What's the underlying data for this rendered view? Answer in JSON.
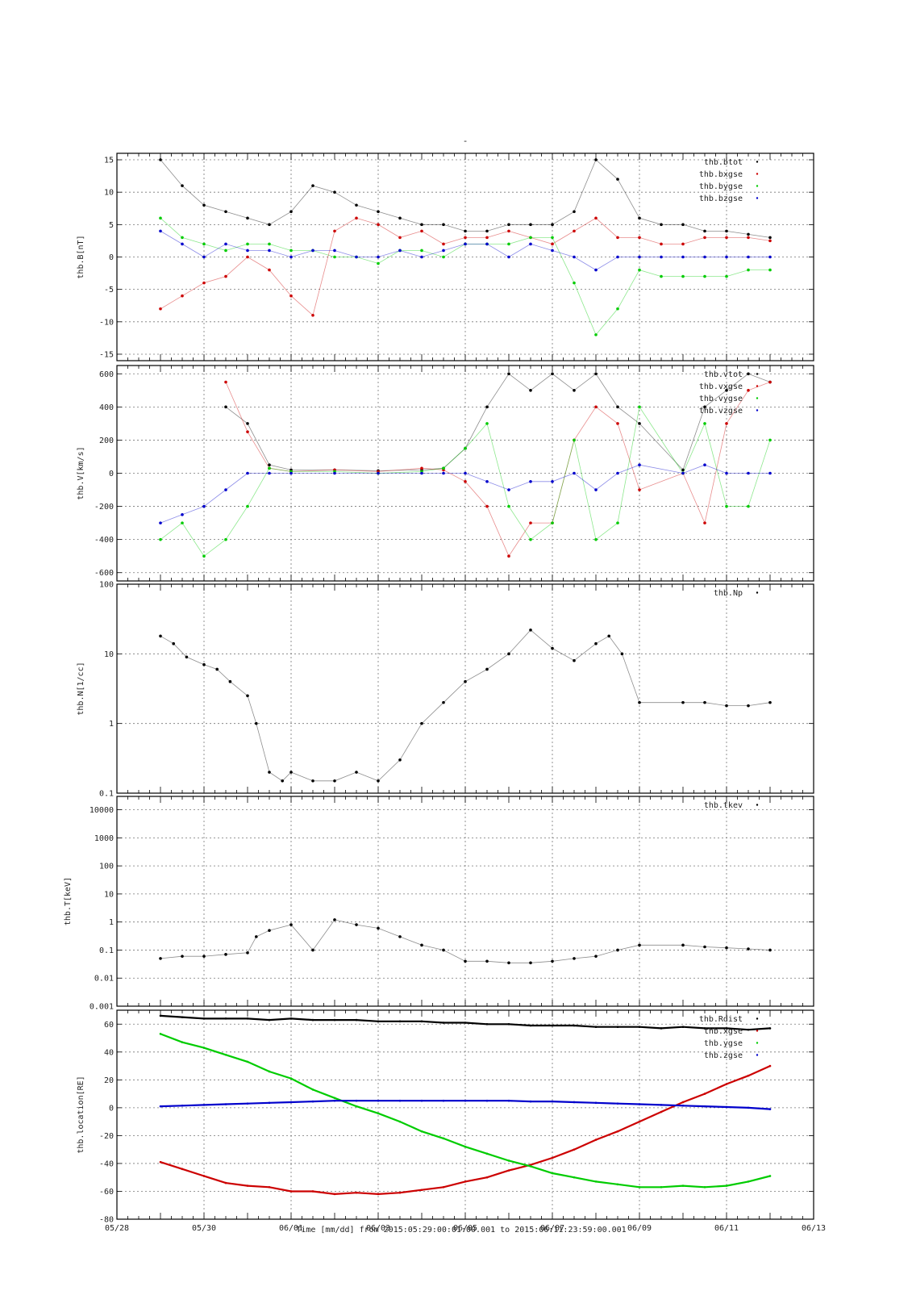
{
  "page": {
    "title": "-",
    "footer": "Time [mm/dd]  from 2015:05:29:00:01:00.001  to  2015:06:11:23:59:00.001"
  },
  "x_axis": {
    "range": [
      0,
      16
    ],
    "ticks": [
      {
        "v": 0,
        "label": "05/28"
      },
      {
        "v": 2,
        "label": "05/30"
      },
      {
        "v": 4,
        "label": "06/01"
      },
      {
        "v": 6,
        "label": "06/03"
      },
      {
        "v": 8,
        "label": "06/05"
      },
      {
        "v": 10,
        "label": "06/07"
      },
      {
        "v": 12,
        "label": "06/09"
      },
      {
        "v": 14,
        "label": "06/11"
      },
      {
        "v": 16,
        "label": "06/13"
      }
    ]
  },
  "colors": {
    "black": "#000000",
    "red": "#cc0000",
    "green": "#00cc00",
    "blue": "#0000cc"
  },
  "chart_data": [
    {
      "type": "scatter",
      "ylabel": "thb.B[nT]",
      "ylim": [
        -16,
        16
      ],
      "log": false,
      "yticks": [
        -15,
        -10,
        -5,
        0,
        5,
        10,
        15
      ],
      "ytick_labels": [
        "-15",
        "-10",
        "-5",
        "0",
        "5",
        "10",
        "15"
      ],
      "grid": true,
      "legend": "top-right",
      "series": [
        {
          "name": "thb.btot",
          "color": "#000000",
          "x": [
            1.0,
            1.5,
            2.0,
            2.5,
            3.0,
            3.5,
            4.0,
            4.5,
            5.0,
            5.5,
            6.0,
            6.5,
            7.0,
            7.5,
            8.0,
            8.5,
            9.0,
            9.5,
            10.0,
            10.5,
            11.0,
            11.5,
            12.0,
            12.5,
            13.0,
            13.5,
            14.0,
            14.5,
            15.0
          ],
          "y": [
            15,
            11,
            8,
            7,
            6,
            5,
            7,
            11,
            10,
            8,
            7,
            6,
            5,
            5,
            4,
            4,
            5,
            5,
            5,
            7,
            15,
            12,
            6,
            5,
            5,
            4,
            4,
            3.5,
            3
          ]
        },
        {
          "name": "thb.bxgse",
          "color": "#cc0000",
          "x": [
            1.0,
            1.5,
            2.0,
            2.5,
            3.0,
            3.5,
            4.0,
            4.5,
            5.0,
            5.5,
            6.0,
            6.5,
            7.0,
            7.5,
            8.0,
            8.5,
            9.0,
            9.5,
            10.0,
            10.5,
            11.0,
            11.5,
            12.0,
            12.5,
            13.0,
            13.5,
            14.0,
            14.5,
            15.0
          ],
          "y": [
            -8,
            -6,
            -4,
            -3,
            0,
            -2,
            -6,
            -9,
            4,
            6,
            5,
            3,
            4,
            2,
            3,
            3,
            4,
            3,
            2,
            4,
            6,
            3,
            3,
            2,
            2,
            3,
            3,
            3,
            2.5
          ]
        },
        {
          "name": "thb.bygse",
          "color": "#00cc00",
          "x": [
            1.0,
            1.5,
            2.0,
            2.5,
            3.0,
            3.5,
            4.0,
            4.5,
            5.0,
            5.5,
            6.0,
            6.5,
            7.0,
            7.5,
            8.0,
            8.5,
            9.0,
            9.5,
            10.0,
            10.5,
            11.0,
            11.5,
            12.0,
            12.5,
            13.0,
            13.5,
            14.0,
            14.5,
            15.0
          ],
          "y": [
            6,
            3,
            2,
            1,
            2,
            2,
            1,
            1,
            0,
            0,
            -1,
            1,
            1,
            0,
            2,
            2,
            2,
            3,
            3,
            -4,
            -12,
            -8,
            -2,
            -3,
            -3,
            -3,
            -3,
            -2,
            -2
          ]
        },
        {
          "name": "thb.bzgse",
          "color": "#0000cc",
          "x": [
            1.0,
            1.5,
            2.0,
            2.5,
            3.0,
            3.5,
            4.0,
            4.5,
            5.0,
            5.5,
            6.0,
            6.5,
            7.0,
            7.5,
            8.0,
            8.5,
            9.0,
            9.5,
            10.0,
            10.5,
            11.0,
            11.5,
            12.0,
            12.5,
            13.0,
            13.5,
            14.0,
            14.5,
            15.0
          ],
          "y": [
            4,
            2,
            0,
            2,
            1,
            1,
            0,
            1,
            1,
            0,
            0,
            1,
            0,
            1,
            2,
            2,
            0,
            2,
            1,
            0,
            -2,
            0,
            0,
            0,
            0,
            0,
            0,
            0,
            0
          ]
        }
      ]
    },
    {
      "type": "scatter",
      "ylabel": "thb.V[km/s]",
      "ylim": [
        -650,
        650
      ],
      "log": false,
      "yticks": [
        -600,
        -400,
        -200,
        0,
        200,
        400,
        600
      ],
      "ytick_labels": [
        "-600",
        "-400",
        "-200",
        "0",
        "200",
        "400",
        "600"
      ],
      "grid": true,
      "legend": "top-right",
      "series": [
        {
          "name": "thb.vtot",
          "color": "#000000",
          "x": [
            2.5,
            3.0,
            3.5,
            4.0,
            5.0,
            6.0,
            7.0,
            7.5,
            8.0,
            8.5,
            9.0,
            9.5,
            10.0,
            10.5,
            11.0,
            11.5,
            12.0,
            13.0,
            13.5,
            14.0,
            14.5,
            15.0
          ],
          "y": [
            400,
            300,
            50,
            20,
            20,
            15,
            20,
            30,
            150,
            400,
            600,
            500,
            600,
            500,
            600,
            400,
            300,
            20,
            400,
            500,
            600,
            550
          ]
        },
        {
          "name": "thb.vxgse",
          "color": "#cc0000",
          "x": [
            2.5,
            3.0,
            3.5,
            4.0,
            5.0,
            6.0,
            7.0,
            7.5,
            8.0,
            8.5,
            9.0,
            9.5,
            10.0,
            10.5,
            11.0,
            11.5,
            12.0,
            13.0,
            13.5,
            14.0,
            14.5,
            15.0
          ],
          "y": [
            550,
            250,
            30,
            10,
            20,
            10,
            30,
            20,
            -50,
            -200,
            -500,
            -300,
            -300,
            200,
            400,
            300,
            -100,
            0,
            -300,
            300,
            500,
            550
          ]
        },
        {
          "name": "thb.vygse",
          "color": "#00cc00",
          "x": [
            1.0,
            1.5,
            2.0,
            2.5,
            3.0,
            3.5,
            4.0,
            5.0,
            6.0,
            7.0,
            7.5,
            8.0,
            8.5,
            9.0,
            9.5,
            10.0,
            10.5,
            11.0,
            11.5,
            12.0,
            13.0,
            13.5,
            14.0,
            14.5,
            15.0
          ],
          "y": [
            -400,
            -300,
            -500,
            -400,
            -200,
            30,
            10,
            10,
            0,
            10,
            30,
            150,
            300,
            -200,
            -400,
            -300,
            200,
            -400,
            -300,
            400,
            0,
            300,
            -200,
            -200,
            200
          ]
        },
        {
          "name": "thb.vzgse",
          "color": "#0000cc",
          "x": [
            1.0,
            1.5,
            2.0,
            2.5,
            3.0,
            3.5,
            4.0,
            5.0,
            6.0,
            7.0,
            7.5,
            8.0,
            8.5,
            9.0,
            9.5,
            10.0,
            10.5,
            11.0,
            11.5,
            12.0,
            13.0,
            13.5,
            14.0,
            14.5,
            15.0
          ],
          "y": [
            -300,
            -250,
            -200,
            -100,
            0,
            0,
            0,
            0,
            0,
            0,
            0,
            0,
            -50,
            -100,
            -50,
            -50,
            0,
            -100,
            0,
            50,
            0,
            50,
            0,
            0,
            0
          ]
        }
      ]
    },
    {
      "type": "scatter",
      "ylabel": "thb.N[1/cc]",
      "ylim": [
        0.1,
        100
      ],
      "log": true,
      "yticks": [
        0.1,
        1,
        10,
        100
      ],
      "ytick_labels": [
        "0.1",
        "1",
        "10",
        "100"
      ],
      "grid": true,
      "legend": "top-right",
      "series": [
        {
          "name": "thb.Np",
          "color": "#000000",
          "x": [
            1.0,
            1.3,
            1.6,
            2.0,
            2.3,
            2.6,
            3.0,
            3.2,
            3.5,
            3.8,
            4.0,
            4.5,
            5.0,
            5.5,
            6.0,
            6.5,
            7.0,
            7.5,
            8.0,
            8.5,
            9.0,
            9.5,
            10.0,
            10.5,
            11.0,
            11.3,
            11.6,
            12.0,
            13.0,
            13.5,
            14.0,
            14.5,
            15.0
          ],
          "y": [
            18,
            14,
            9,
            7,
            6,
            4,
            2.5,
            1,
            0.2,
            0.15,
            0.2,
            0.15,
            0.15,
            0.2,
            0.15,
            0.3,
            1,
            2,
            4,
            6,
            10,
            22,
            12,
            8,
            14,
            18,
            10,
            2,
            2,
            2,
            1.8,
            1.8,
            2
          ]
        }
      ]
    },
    {
      "type": "scatter",
      "ylabel": "thb.T[keV]",
      "ylim": [
        0.001,
        30000
      ],
      "log": true,
      "yticks": [
        0.001,
        0.01,
        0.1,
        1,
        10,
        100,
        1000,
        10000
      ],
      "ytick_labels": [
        "0.001",
        "0.01",
        "0.1",
        "1",
        "10",
        "100",
        "1000",
        "10000"
      ],
      "grid": true,
      "legend": "top-right",
      "series": [
        {
          "name": "thb.tkev",
          "color": "#000000",
          "x": [
            1.0,
            1.5,
            2.0,
            2.5,
            3.0,
            3.2,
            3.5,
            4.0,
            4.5,
            5.0,
            5.5,
            6.0,
            6.5,
            7.0,
            7.5,
            8.0,
            8.5,
            9.0,
            9.5,
            10.0,
            10.5,
            11.0,
            11.5,
            12.0,
            13.0,
            13.5,
            14.0,
            14.5,
            15.0
          ],
          "y": [
            0.05,
            0.06,
            0.06,
            0.07,
            0.08,
            0.3,
            0.5,
            0.8,
            0.1,
            1.2,
            0.8,
            0.6,
            0.3,
            0.15,
            0.1,
            0.04,
            0.04,
            0.035,
            0.035,
            0.04,
            0.05,
            0.06,
            0.1,
            0.15,
            0.15,
            0.13,
            0.12,
            0.11,
            0.1
          ]
        }
      ]
    },
    {
      "type": "line",
      "ylabel": "thb.location[RE]",
      "ylim": [
        -80,
        70
      ],
      "log": false,
      "yticks": [
        -80,
        -60,
        -40,
        -20,
        0,
        20,
        40,
        60
      ],
      "ytick_labels": [
        "-80",
        "-60",
        "-40",
        "-20",
        "0",
        "20",
        "40",
        "60"
      ],
      "grid": true,
      "legend": "top-right",
      "series": [
        {
          "name": "thb.Rdist",
          "color": "#000000",
          "x": [
            1.0,
            1.5,
            2.0,
            2.5,
            3.0,
            3.5,
            4.0,
            4.5,
            5.0,
            5.5,
            6.0,
            6.5,
            7.0,
            7.5,
            8.0,
            8.5,
            9.0,
            9.5,
            10.0,
            10.5,
            11.0,
            11.5,
            12.0,
            12.5,
            13.0,
            13.5,
            14.0,
            14.5,
            15.0
          ],
          "y": [
            66,
            65,
            64,
            64,
            64,
            63,
            64,
            63,
            63,
            63,
            62,
            62,
            62,
            61,
            61,
            60,
            60,
            59,
            59,
            59,
            58,
            58,
            58,
            57,
            58,
            57,
            57,
            56,
            57
          ]
        },
        {
          "name": "thb.xgse",
          "color": "#cc0000",
          "x": [
            1.0,
            1.5,
            2.0,
            2.5,
            3.0,
            3.5,
            4.0,
            4.5,
            5.0,
            5.5,
            6.0,
            6.5,
            7.0,
            7.5,
            8.0,
            8.5,
            9.0,
            9.5,
            10.0,
            10.5,
            11.0,
            11.5,
            12.0,
            12.5,
            13.0,
            13.5,
            14.0,
            14.5,
            15.0
          ],
          "y": [
            -39,
            -44,
            -49,
            -54,
            -56,
            -57,
            -60,
            -60,
            -62,
            -61,
            -62,
            -61,
            -59,
            -57,
            -53,
            -50,
            -45,
            -41,
            -36,
            -30,
            -23,
            -17,
            -10,
            -3,
            4,
            10,
            17,
            23,
            30
          ]
        },
        {
          "name": "thb.ygse",
          "color": "#00cc00",
          "x": [
            1.0,
            1.5,
            2.0,
            2.5,
            3.0,
            3.5,
            4.0,
            4.5,
            5.0,
            5.5,
            6.0,
            6.5,
            7.0,
            7.5,
            8.0,
            8.5,
            9.0,
            9.5,
            10.0,
            10.5,
            11.0,
            11.5,
            12.0,
            12.5,
            13.0,
            13.5,
            14.0,
            14.5,
            15.0
          ],
          "y": [
            53,
            47,
            43,
            38,
            33,
            26,
            21,
            13,
            7,
            1,
            -4,
            -10,
            -17,
            -22,
            -28,
            -33,
            -38,
            -42,
            -47,
            -50,
            -53,
            -55,
            -57,
            -57,
            -56,
            -57,
            -56,
            -53,
            -49
          ]
        },
        {
          "name": "thb.zgse",
          "color": "#0000cc",
          "x": [
            1.0,
            1.5,
            2.0,
            2.5,
            3.0,
            3.5,
            4.0,
            4.5,
            5.0,
            5.5,
            6.0,
            6.5,
            7.0,
            7.5,
            8.0,
            8.5,
            9.0,
            9.5,
            10.0,
            10.5,
            11.0,
            11.5,
            12.0,
            12.5,
            13.0,
            13.5,
            14.0,
            14.5,
            15.0
          ],
          "y": [
            1,
            1.5,
            2,
            2.5,
            3,
            3.5,
            4,
            4.5,
            5,
            5,
            5,
            5,
            5,
            5,
            5,
            5,
            5,
            4.5,
            4.5,
            4,
            3.5,
            3,
            2.5,
            2,
            1.5,
            1,
            0.5,
            0,
            -1
          ]
        }
      ]
    }
  ]
}
